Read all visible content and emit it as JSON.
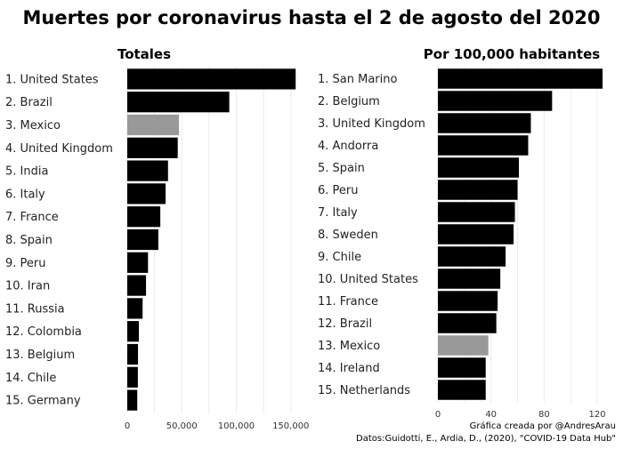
{
  "title": "Muertes por coronavirus hasta el 2 de agosto del 2020",
  "captions": {
    "credit": "Gráfica creada por @AndresArau",
    "source": "Datos:Guidotti, E., Ardia, D., (2020), \"COVID-19 Data Hub\""
  },
  "colors": {
    "bar": "#000000",
    "highlight": "#999999",
    "grid": "#ebebeb"
  },
  "chart_data": [
    {
      "type": "bar",
      "orientation": "horizontal",
      "title": "Totales",
      "categories": [
        "1. United States",
        "2. Brazil",
        "3. Mexico",
        "4. United Kingdom",
        "5. India",
        "6. Italy",
        "7. France",
        "8. Spain",
        "9. Peru",
        "10. Iran",
        "11. Russia",
        "12. Colombia",
        "13. Belgium",
        "14. Chile",
        "15. Germany"
      ],
      "values": [
        154449,
        93563,
        47472,
        46286,
        37364,
        35154,
        30297,
        28472,
        19021,
        17190,
        14058,
        10650,
        9845,
        9707,
        9154
      ],
      "highlight": "3. Mexico",
      "xlim": [
        0,
        160000
      ],
      "xticks": [
        0,
        50000,
        100000,
        150000
      ],
      "xtick_labels": [
        "0",
        "50,000",
        "100,000",
        "150,000"
      ],
      "grid": true
    },
    {
      "type": "bar",
      "orientation": "horizontal",
      "title": "Por 100,000 habitantes",
      "categories": [
        "1. San Marino",
        "2. Belgium",
        "3. United Kingdom",
        "4. Andorra",
        "5. Spain",
        "6. Peru",
        "7. Italy",
        "8. Sweden",
        "9. Chile",
        "10. United States",
        "11. France",
        "12. Brazil",
        "13. Mexico",
        "14. Ireland",
        "15. Netherlands"
      ],
      "values": [
        124,
        86,
        70,
        68,
        61,
        60,
        58,
        57,
        51,
        47,
        45,
        44,
        38,
        36,
        36
      ],
      "highlight": "13. Mexico",
      "xlim": [
        0,
        130
      ],
      "xticks": [
        0,
        40,
        80,
        120
      ],
      "xtick_labels": [
        "0",
        "40",
        "80",
        "120"
      ],
      "grid": true
    }
  ]
}
